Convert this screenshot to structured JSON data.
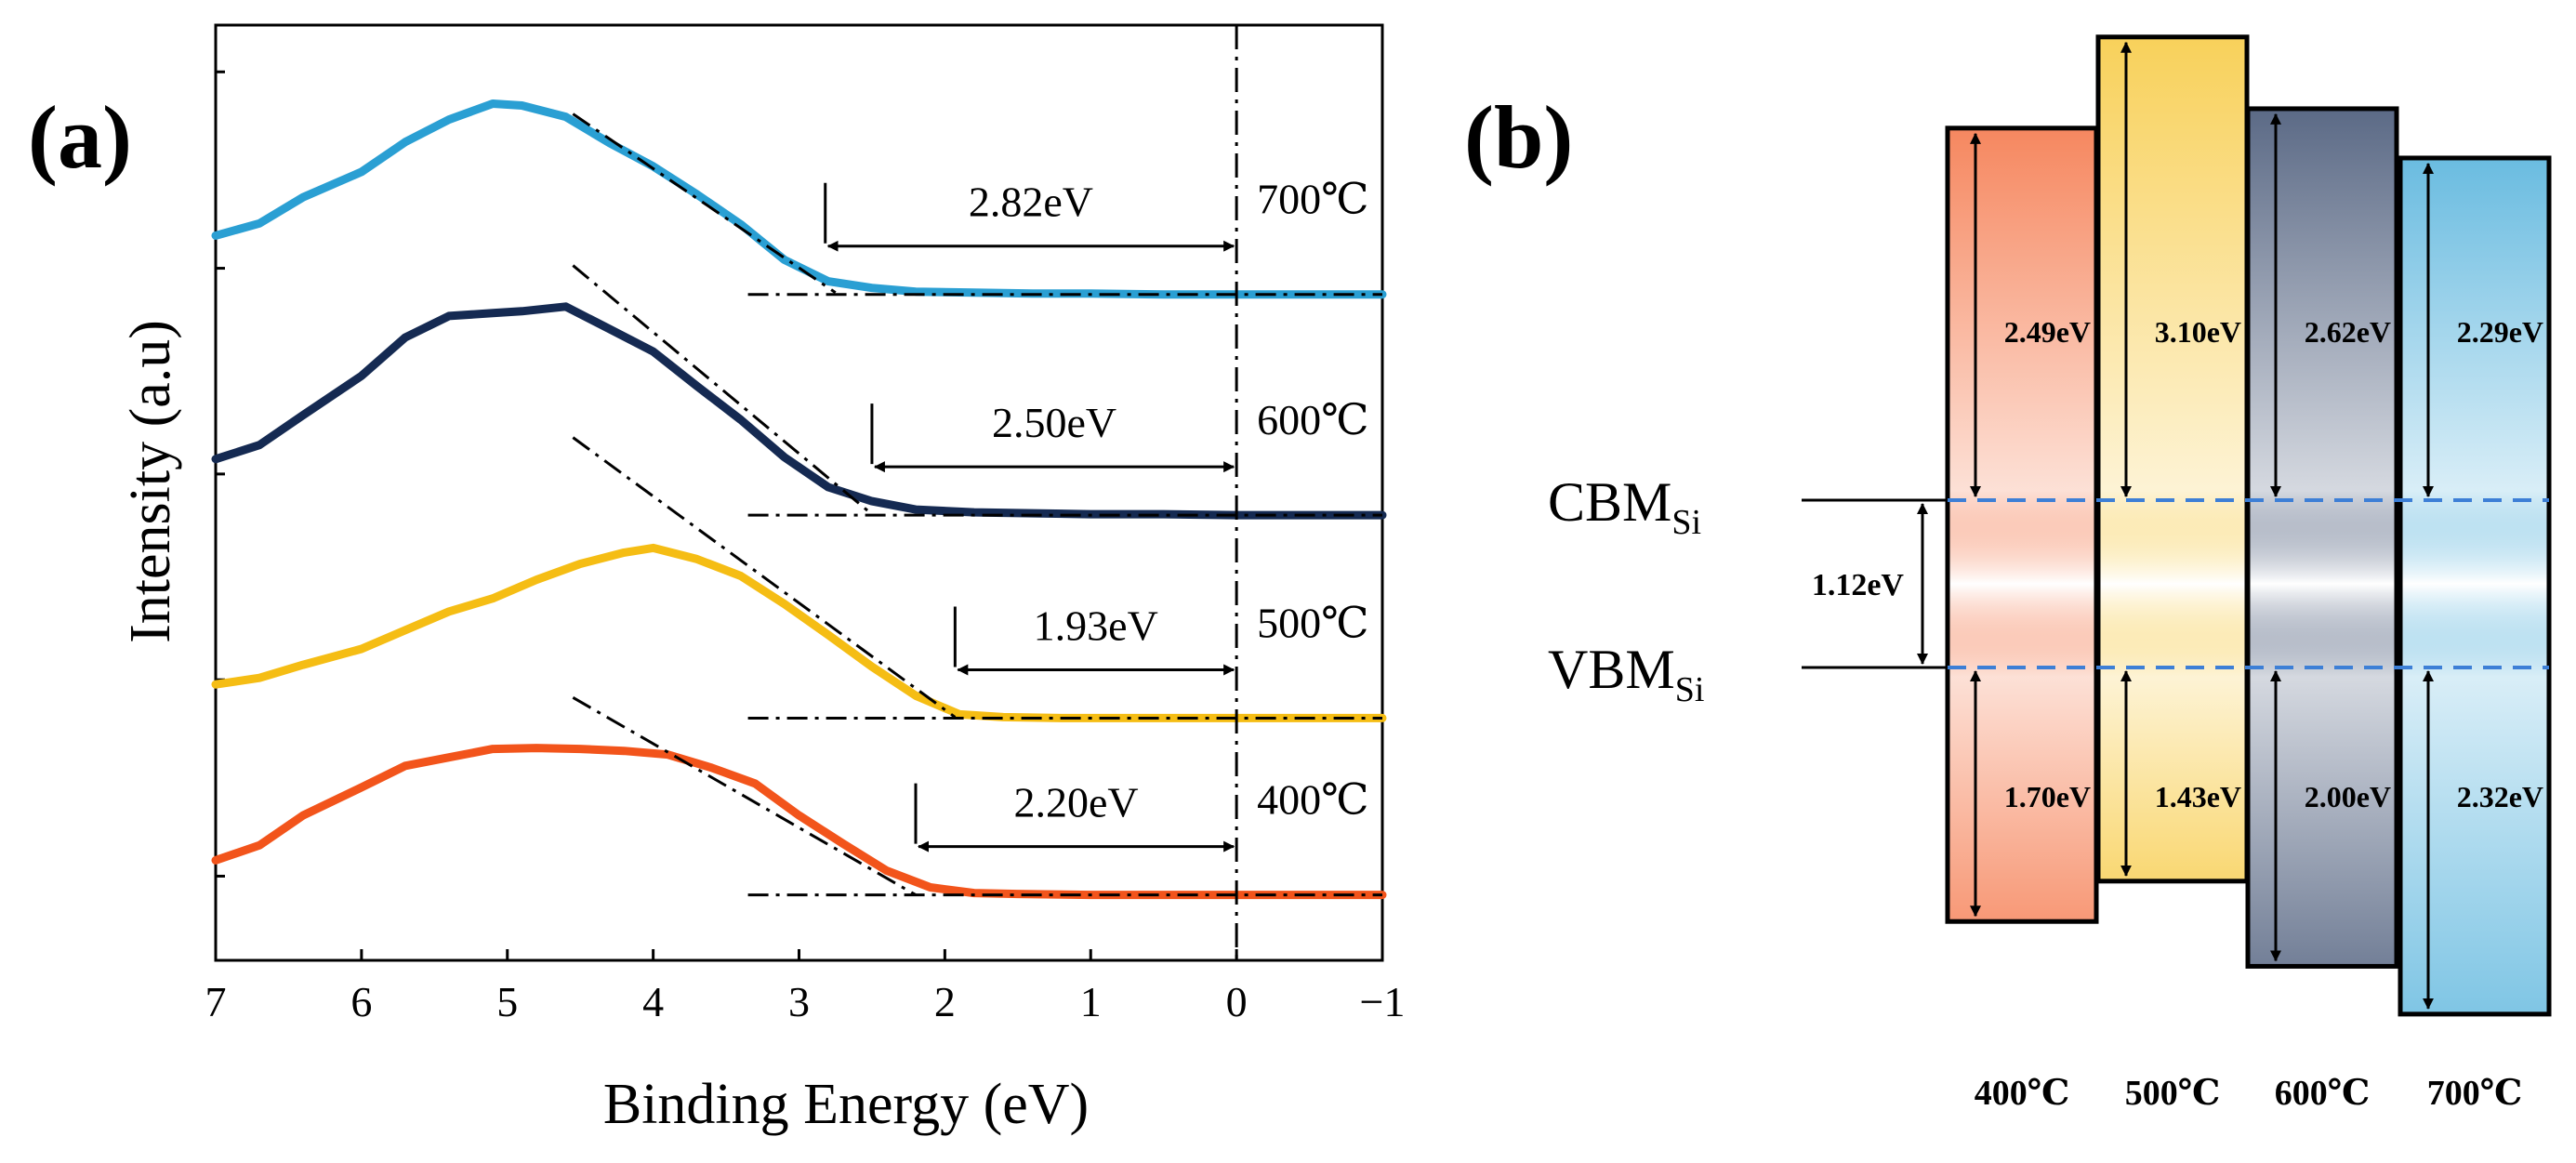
{
  "colors": {
    "c400": "#f2541b",
    "c500": "#f5bd14",
    "c600": "#152a52",
    "c700": "#2a9fd3",
    "axis": "#000000",
    "dash_blue": "#3d7fd6"
  },
  "chart_data": [
    {
      "id": "a",
      "type": "line",
      "panel_label": "(a)",
      "xlabel": "Binding Energy (eV)",
      "ylabel": "Intensity (a.u)",
      "xlim": [
        7,
        -1
      ],
      "x_ticks": [
        7,
        6,
        5,
        4,
        3,
        2,
        1,
        0,
        -1
      ],
      "x_tick_labels": [
        "7",
        "6",
        "5",
        "4",
        "3",
        "2",
        "1",
        "0",
        "−1"
      ],
      "y_units": "relative intensity (0 = bottom axis, 100 = top of frame)",
      "ylim": [
        0,
        100
      ],
      "y_ticks": [
        9,
        30,
        52,
        74,
        95
      ],
      "vertical_reference_x": 0,
      "series": [
        {
          "name": "700℃",
          "label": "700℃",
          "color_key": "c700",
          "x": [
            7,
            6.7,
            6.4,
            6.0,
            5.7,
            5.4,
            5.1,
            4.9,
            4.6,
            4.3,
            4.0,
            3.7,
            3.4,
            3.1,
            2.8,
            2.5,
            2.2,
            1.8,
            1.4,
            1.0,
            0.5,
            0,
            -0.5,
            -1
          ],
          "y": [
            77.5,
            78.8,
            81.6,
            84.3,
            87.5,
            89.9,
            91.6,
            91.4,
            90.2,
            87.4,
            84.9,
            81.9,
            78.7,
            74.9,
            72.6,
            71.9,
            71.5,
            71.4,
            71.3,
            71.3,
            71.2,
            71.2,
            71.2,
            71.2
          ],
          "baseline_y": 71.2,
          "onset_x": 2.82,
          "gap_label": "2.82eV",
          "tangent": {
            "x1": 4.55,
            "y1": 90.5,
            "x2": 2.75,
            "y2": 71.4
          }
        },
        {
          "name": "600℃",
          "label": "600℃",
          "color_key": "c600",
          "x": [
            7,
            6.7,
            6.4,
            6.0,
            5.7,
            5.4,
            5.1,
            4.9,
            4.6,
            4.3,
            4.0,
            3.7,
            3.4,
            3.1,
            2.8,
            2.5,
            2.2,
            1.8,
            1.4,
            1.0,
            0.5,
            0,
            -0.5,
            -1
          ],
          "y": [
            53.6,
            55.1,
            58.3,
            62.5,
            66.6,
            68.9,
            69.2,
            69.4,
            69.9,
            67.5,
            65.1,
            61.4,
            57.8,
            53.8,
            50.6,
            49.1,
            48.2,
            47.9,
            47.8,
            47.7,
            47.7,
            47.6,
            47.6,
            47.6
          ],
          "baseline_y": 47.6,
          "onset_x": 2.5,
          "gap_label": "2.50eV",
          "tangent": {
            "x1": 4.55,
            "y1": 74.3,
            "x2": 2.5,
            "y2": 47.7
          }
        },
        {
          "name": "500℃",
          "label": "500℃",
          "color_key": "c500",
          "x": [
            7,
            6.7,
            6.4,
            6.0,
            5.7,
            5.4,
            5.1,
            4.8,
            4.5,
            4.2,
            4.0,
            3.7,
            3.4,
            3.1,
            2.8,
            2.5,
            2.2,
            1.9,
            1.6,
            1.2,
            0.8,
            0.4,
            0,
            -0.5,
            -1
          ],
          "y": [
            29.5,
            30.2,
            31.6,
            33.3,
            35.3,
            37.3,
            38.7,
            40.7,
            42.4,
            43.6,
            44.1,
            42.9,
            41.1,
            38.1,
            34.8,
            31.4,
            28.3,
            26.3,
            26.0,
            25.9,
            25.9,
            25.9,
            25.9,
            25.9,
            25.9
          ],
          "baseline_y": 25.9,
          "onset_x": 1.93,
          "gap_label": "1.93eV",
          "tangent": {
            "x1": 4.55,
            "y1": 55.9,
            "x2": 1.93,
            "y2": 26.0
          }
        },
        {
          "name": "400℃",
          "label": "400℃",
          "color_key": "c400",
          "x": [
            7,
            6.7,
            6.4,
            6.0,
            5.7,
            5.4,
            5.1,
            4.8,
            4.5,
            4.2,
            3.9,
            3.6,
            3.3,
            3.0,
            2.7,
            2.4,
            2.1,
            1.8,
            1.5,
            1.0,
            0.5,
            0,
            -0.5,
            -1
          ],
          "y": [
            10.7,
            12.3,
            15.5,
            18.5,
            20.8,
            21.7,
            22.6,
            22.7,
            22.6,
            22.4,
            22.0,
            20.6,
            18.9,
            15.5,
            12.5,
            9.6,
            7.8,
            7.2,
            7.1,
            7.0,
            7.0,
            7.0,
            7.0,
            7.0
          ],
          "baseline_y": 7.0,
          "onset_x": 2.2,
          "gap_label": "2.20eV",
          "tangent": {
            "x1": 4.55,
            "y1": 28.1,
            "x2": 2.2,
            "y2": 7.0
          }
        }
      ]
    },
    {
      "id": "b",
      "type": "diagram",
      "panel_label": "(b)",
      "units": "eV",
      "reference": {
        "cbm_label": "CBM",
        "vbm_label": "VBM",
        "subscript": "Si",
        "si_gap_label": "1.12eV",
        "cbm_energy": 1.12,
        "vbm_energy": 0
      },
      "columns": [
        {
          "label": "400℃",
          "color_key": "c400",
          "cb_offset": 2.49,
          "cb_label": "2.49eV",
          "vb_offset": 1.7,
          "vb_label": "1.70eV"
        },
        {
          "label": "500℃",
          "color_key": "c500",
          "cb_offset": 3.1,
          "cb_label": "3.10eV",
          "vb_offset": 1.43,
          "vb_label": "1.43eV"
        },
        {
          "label": "600℃",
          "color_key": "c600",
          "cb_offset": 2.62,
          "cb_label": "2.62eV",
          "vb_offset": 2.0,
          "vb_label": "2.00eV"
        },
        {
          "label": "700℃",
          "color_key": "c700",
          "cb_offset": 2.29,
          "cb_label": "2.29eV",
          "vb_offset": 2.32,
          "vb_label": "2.32eV"
        }
      ]
    }
  ]
}
